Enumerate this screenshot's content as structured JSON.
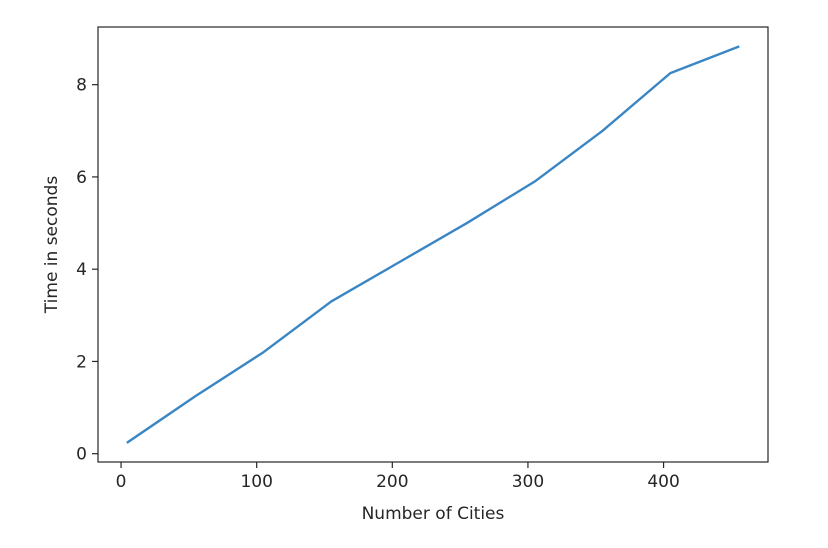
{
  "chart_data": {
    "type": "line",
    "title": "",
    "xlabel": "Number of Cities",
    "ylabel": "Time in seconds",
    "x": [
      5,
      55,
      105,
      155,
      205,
      255,
      305,
      355,
      405,
      455
    ],
    "series": [
      {
        "values": [
          0.25,
          1.25,
          2.2,
          3.3,
          4.15,
          5.0,
          5.9,
          7.0,
          8.25,
          8.82
        ],
        "color": "#3a86c4"
      }
    ],
    "xlim": [
      -17,
      477
    ],
    "ylim": [
      -0.18,
      9.25
    ],
    "xticks": [
      0,
      100,
      200,
      300,
      400
    ],
    "yticks": [
      0,
      2,
      4,
      6,
      8
    ],
    "xtick_labels": [
      "0",
      "100",
      "200",
      "300",
      "400"
    ],
    "ytick_labels": [
      "0",
      "2",
      "4",
      "6",
      "8"
    ],
    "grid": false,
    "legend": "none"
  }
}
